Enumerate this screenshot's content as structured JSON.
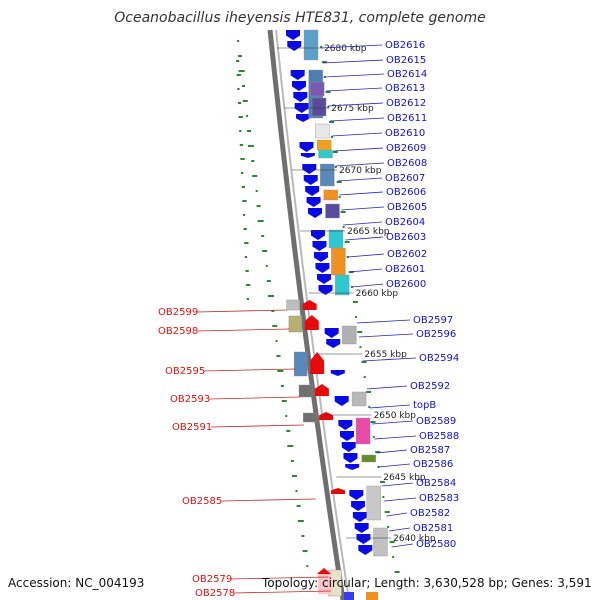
{
  "title": "Oceanobacillus iheyensis HTE831, complete genome",
  "footer": {
    "accession": "Accession: NC_004193",
    "topology": "Topology: circular; Length: 3,630,528 bp; Genes: 3,591"
  },
  "colors": {
    "backbone": "#8a8a8a",
    "label_right": "#1111cc",
    "label_left": "#dd1111",
    "gc_dots": "#2a8a2a",
    "cds_forward": "#0a0ae6",
    "cds_reverse": "#e60a0a"
  },
  "scale_labels": [
    "2680 kbp",
    "2675 kbp",
    "2670 kbp",
    "2665 kbp",
    "2660 kbp",
    "2655 kbp",
    "2650 kbp",
    "2645 kbp",
    "2640 kbp"
  ],
  "genes_right": [
    "OB2616",
    "OB2615",
    "OB2614",
    "OB2613",
    "OB2612",
    "OB2611",
    "OB2610",
    "OB2609",
    "OB2608",
    "OB2607",
    "OB2606",
    "OB2605",
    "OB2604",
    "OB2603",
    "OB2602",
    "OB2601",
    "OB2600",
    "OB2597",
    "OB2596",
    "OB2594",
    "OB2592",
    "topB",
    "OB2589",
    "OB2588",
    "OB2587",
    "OB2586",
    "OB2584",
    "OB2583",
    "OB2582",
    "OB2581",
    "OB2580"
  ],
  "genes_left": [
    "OB2599",
    "OB2598",
    "OB2595",
    "OB2593",
    "OB2591",
    "OB2585",
    "OB2579",
    "OB2578"
  ]
}
